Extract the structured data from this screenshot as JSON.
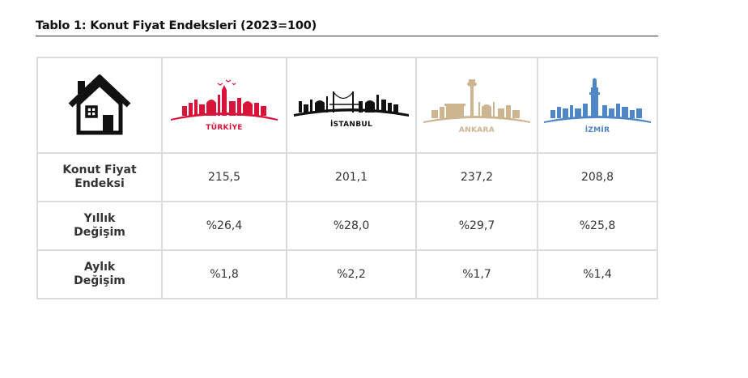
{
  "title": "Tablo 1: Konut Fiyat Endeksleri (2023=100)",
  "header": {
    "icon": "house-icon",
    "cities": [
      {
        "name": "TÜRKİYE",
        "color": "#d9143a"
      },
      {
        "name": "İSTANBUL",
        "color": "#111111"
      },
      {
        "name": "ANKARA",
        "color": "#cdb590"
      },
      {
        "name": "İZMİR",
        "color": "#4f86c6"
      }
    ]
  },
  "rows": [
    {
      "label_line1": "Konut Fiyat",
      "label_line2": "Endeksi",
      "values": [
        "215,5",
        "201,1",
        "237,2",
        "208,8"
      ]
    },
    {
      "label_line1": "Yıllık",
      "label_line2": "Değişim",
      "values": [
        "%26,4",
        "%28,0",
        "%29,7",
        "%25,8"
      ]
    },
    {
      "label_line1": "Aylık",
      "label_line2": "Değişim",
      "values": [
        "%1,8",
        "%2,2",
        "%1,7",
        "%1,4"
      ]
    }
  ]
}
